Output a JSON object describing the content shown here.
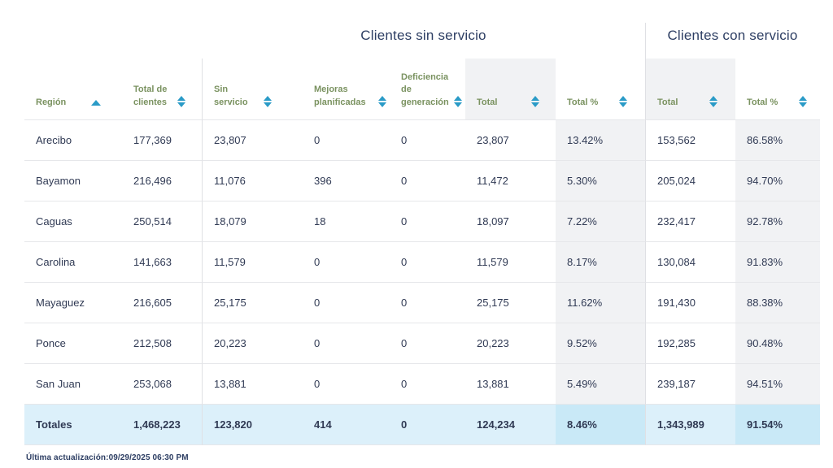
{
  "section_headers": {
    "sin_servicio": "Clientes sin servicio",
    "con_servicio": "Clientes con servicio"
  },
  "table": {
    "columns": {
      "region": {
        "label": "Región",
        "sort_state": "ascending"
      },
      "total_clientes": {
        "label": "Total de clientes",
        "sort_state": "unsorted"
      },
      "sin_servicio": {
        "label": "Sin servicio",
        "sort_state": "unsorted"
      },
      "mejoras_planificadas": {
        "label": "Mejoras planificadas",
        "sort_state": "unsorted"
      },
      "deficiencia_generacion": {
        "label": "Deficiencia de generación",
        "sort_state": "unsorted"
      },
      "total_sin": {
        "label": "Total",
        "sort_state": "unsorted"
      },
      "total_sin_pct": {
        "label": "Total %",
        "sort_state": "unsorted"
      },
      "total_con": {
        "label": "Total",
        "sort_state": "unsorted"
      },
      "total_con_pct": {
        "label": "Total %",
        "sort_state": "unsorted"
      }
    },
    "rows": [
      {
        "region": "Arecibo",
        "total_clientes": "177,369",
        "sin_servicio": "23,807",
        "mejoras_planificadas": "0",
        "deficiencia_generacion": "0",
        "total_sin": "23,807",
        "total_sin_pct": "13.42%",
        "total_con": "153,562",
        "total_con_pct": "86.58%"
      },
      {
        "region": "Bayamon",
        "total_clientes": "216,496",
        "sin_servicio": "11,076",
        "mejoras_planificadas": "396",
        "deficiencia_generacion": "0",
        "total_sin": "11,472",
        "total_sin_pct": "5.30%",
        "total_con": "205,024",
        "total_con_pct": "94.70%"
      },
      {
        "region": "Caguas",
        "total_clientes": "250,514",
        "sin_servicio": "18,079",
        "mejoras_planificadas": "18",
        "deficiencia_generacion": "0",
        "total_sin": "18,097",
        "total_sin_pct": "7.22%",
        "total_con": "232,417",
        "total_con_pct": "92.78%"
      },
      {
        "region": "Carolina",
        "total_clientes": "141,663",
        "sin_servicio": "11,579",
        "mejoras_planificadas": "0",
        "deficiencia_generacion": "0",
        "total_sin": "11,579",
        "total_sin_pct": "8.17%",
        "total_con": "130,084",
        "total_con_pct": "91.83%"
      },
      {
        "region": "Mayaguez",
        "total_clientes": "216,605",
        "sin_servicio": "25,175",
        "mejoras_planificadas": "0",
        "deficiencia_generacion": "0",
        "total_sin": "25,175",
        "total_sin_pct": "11.62%",
        "total_con": "191,430",
        "total_con_pct": "88.38%"
      },
      {
        "region": "Ponce",
        "total_clientes": "212,508",
        "sin_servicio": "20,223",
        "mejoras_planificadas": "0",
        "deficiencia_generacion": "0",
        "total_sin": "20,223",
        "total_sin_pct": "9.52%",
        "total_con": "192,285",
        "total_con_pct": "90.48%"
      },
      {
        "region": "San Juan",
        "total_clientes": "253,068",
        "sin_servicio": "13,881",
        "mejoras_planificadas": "0",
        "deficiencia_generacion": "0",
        "total_sin": "13,881",
        "total_sin_pct": "5.49%",
        "total_con": "239,187",
        "total_con_pct": "94.51%"
      }
    ],
    "totals": {
      "region": "Totales",
      "total_clientes": "1,468,223",
      "sin_servicio": "123,820",
      "mejoras_planificadas": "414",
      "deficiencia_generacion": "0",
      "total_sin": "124,234",
      "total_sin_pct": "8.46%",
      "total_con": "1,343,989",
      "total_con_pct": "91.54%"
    }
  },
  "footer": {
    "last_updated": "Última actualización:09/29/2025 06:30 PM"
  },
  "colors": {
    "accent_blue": "#2a9bc7",
    "header_green": "#7a9260",
    "text_navy": "#303a54",
    "title_navy": "#2d3e63",
    "col_shade_gray": "#f1f2f4",
    "row_border": "#e6e7ea",
    "divider": "#dfe0e4",
    "totals_row_blue": "#dcf0fa",
    "totals_pct_blue": "#c9e9f7"
  }
}
